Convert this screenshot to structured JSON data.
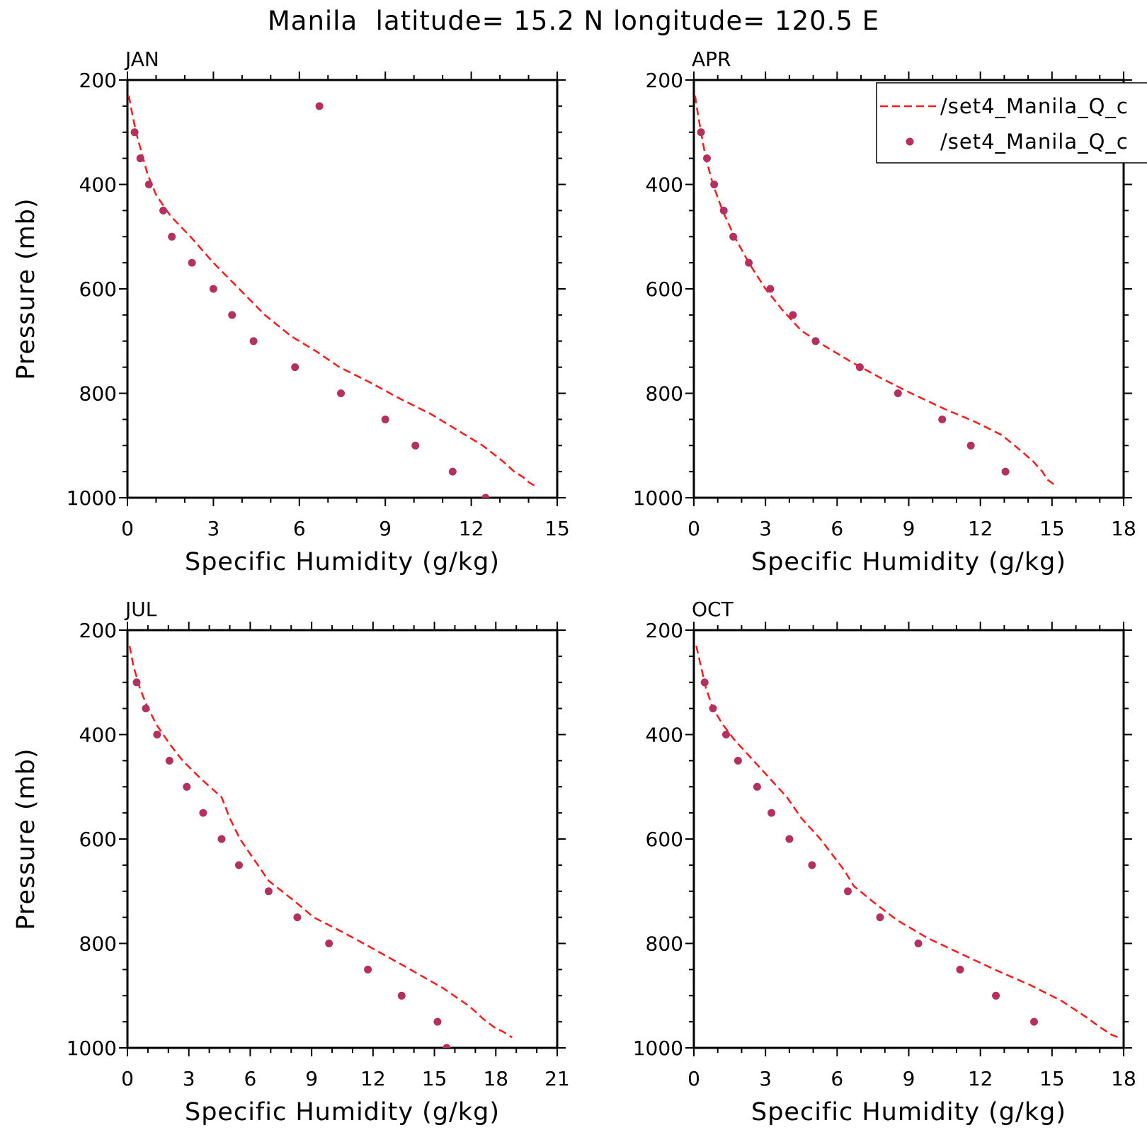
{
  "figure_title": "Manila  latitude= 15.2 N longitude= 120.5 E",
  "legend": {
    "line_label": "/set4_Manila_Q_c",
    "points_label": "/set4_Manila_Q_c",
    "placement": "top-right of APR panel, clipped"
  },
  "colors": {
    "line": "#ff1a1a",
    "points": "#b5305e",
    "axes": "#000000"
  },
  "chart_data": [
    {
      "type": "line",
      "panel_label": "JAN",
      "xlabel": "Specific Humidity (g/kg)",
      "ylabel": "Pressure (mb)",
      "xlim": [
        0,
        15
      ],
      "xticks": [
        0,
        3,
        6,
        9,
        12,
        15
      ],
      "ylim": [
        1000,
        200
      ],
      "yticks": [
        200,
        400,
        600,
        800,
        1000
      ],
      "grid": false,
      "series": [
        {
          "style": "dashed-line",
          "x": [
            0.05,
            0.15,
            0.3,
            0.5,
            0.7,
            1.0,
            1.5,
            2.2,
            3.0,
            3.9,
            4.8,
            5.7,
            6.6,
            7.4,
            8.5,
            9.5,
            10.6,
            11.5,
            12.4,
            13.1,
            13.5,
            13.8,
            14.0,
            14.3
          ],
          "y": [
            230,
            260,
            300,
            340,
            380,
            420,
            460,
            500,
            550,
            600,
            650,
            690,
            720,
            750,
            780,
            810,
            840,
            870,
            900,
            930,
            950,
            960,
            970,
            980
          ]
        },
        {
          "style": "points",
          "x": [
            6.7,
            0.25,
            0.45,
            0.75,
            1.25,
            1.55,
            2.25,
            3.0,
            3.65,
            4.4,
            5.85,
            7.45,
            9.0,
            10.05,
            11.35,
            12.5
          ],
          "y": [
            250,
            300,
            350,
            400,
            450,
            500,
            550,
            600,
            650,
            700,
            750,
            800,
            850,
            900,
            950,
            1000
          ]
        }
      ]
    },
    {
      "type": "line",
      "panel_label": "APR",
      "xlabel": "Specific Humidity (g/kg)",
      "ylabel": "",
      "xlim": [
        0,
        18
      ],
      "xticks": [
        0,
        3,
        6,
        9,
        12,
        15,
        18
      ],
      "ylim": [
        1000,
        200
      ],
      "yticks": [
        200,
        400,
        600,
        800,
        1000
      ],
      "grid": false,
      "series": [
        {
          "style": "dashed-line",
          "x": [
            0.05,
            0.15,
            0.3,
            0.5,
            0.8,
            1.2,
            1.7,
            2.3,
            3.0,
            3.7,
            4.5,
            5.5,
            6.6,
            7.8,
            9.1,
            10.5,
            11.8,
            12.9,
            13.7,
            14.2,
            14.6,
            14.8,
            15.1
          ],
          "y": [
            230,
            260,
            300,
            350,
            400,
            450,
            500,
            550,
            600,
            640,
            680,
            710,
            740,
            770,
            800,
            830,
            855,
            880,
            910,
            930,
            950,
            965,
            975
          ]
        },
        {
          "style": "points",
          "x": [
            0.3,
            0.55,
            0.85,
            1.25,
            1.65,
            2.3,
            3.2,
            4.15,
            5.1,
            6.95,
            8.55,
            10.4,
            11.6,
            13.05
          ],
          "y": [
            300,
            350,
            400,
            450,
            500,
            550,
            600,
            650,
            700,
            750,
            800,
            850,
            900,
            950
          ]
        }
      ]
    },
    {
      "type": "line",
      "panel_label": "JUL",
      "xlabel": "Specific Humidity (g/kg)",
      "ylabel": "Pressure (mb)",
      "xlim": [
        0,
        21
      ],
      "xticks": [
        0,
        3,
        6,
        9,
        12,
        15,
        18,
        21
      ],
      "ylim": [
        1000,
        200
      ],
      "yticks": [
        200,
        400,
        600,
        800,
        1000
      ],
      "grid": false,
      "series": [
        {
          "style": "dashed-line",
          "x": [
            0.1,
            0.3,
            0.6,
            0.9,
            1.4,
            2.1,
            2.7,
            3.6,
            4.6,
            5.0,
            5.5,
            6.2,
            6.9,
            8.2,
            9.1,
            10.6,
            12.0,
            13.6,
            15.4,
            16.7,
            17.4,
            17.9,
            18.4,
            18.8
          ],
          "y": [
            230,
            270,
            310,
            340,
            380,
            420,
            450,
            485,
            520,
            560,
            600,
            640,
            680,
            720,
            750,
            780,
            810,
            845,
            885,
            920,
            945,
            960,
            970,
            980
          ]
        },
        {
          "style": "points",
          "x": [
            0.45,
            0.9,
            1.45,
            2.05,
            2.9,
            3.7,
            4.6,
            5.45,
            6.9,
            8.3,
            9.85,
            11.75,
            13.4,
            15.15,
            15.6
          ],
          "y": [
            300,
            350,
            400,
            450,
            500,
            550,
            600,
            650,
            700,
            750,
            800,
            850,
            900,
            950,
            1000
          ]
        }
      ]
    },
    {
      "type": "line",
      "panel_label": "OCT",
      "xlabel": "Specific Humidity (g/kg)",
      "ylabel": "",
      "xlim": [
        0,
        18
      ],
      "xticks": [
        0,
        3,
        6,
        9,
        12,
        15,
        18
      ],
      "ylim": [
        1000,
        200
      ],
      "yticks": [
        200,
        400,
        600,
        800,
        1000
      ],
      "grid": false,
      "series": [
        {
          "style": "dashed-line",
          "x": [
            0.1,
            0.3,
            0.5,
            0.8,
            1.2,
            1.7,
            2.3,
            3.1,
            3.9,
            4.5,
            5.3,
            6.3,
            6.7,
            7.5,
            8.5,
            9.8,
            11.2,
            12.6,
            14.1,
            15.4,
            16.4,
            17.0,
            17.5,
            17.8
          ],
          "y": [
            230,
            270,
            310,
            350,
            380,
            410,
            440,
            480,
            520,
            560,
            600,
            660,
            690,
            720,
            755,
            790,
            820,
            850,
            880,
            910,
            940,
            960,
            975,
            980
          ]
        },
        {
          "style": "points",
          "x": [
            0.45,
            0.8,
            1.35,
            1.85,
            2.65,
            3.25,
            4.0,
            4.95,
            6.45,
            7.8,
            9.4,
            11.15,
            12.65,
            14.25
          ],
          "y": [
            300,
            350,
            400,
            450,
            500,
            550,
            600,
            650,
            700,
            750,
            800,
            850,
            900,
            950
          ]
        }
      ]
    }
  ]
}
